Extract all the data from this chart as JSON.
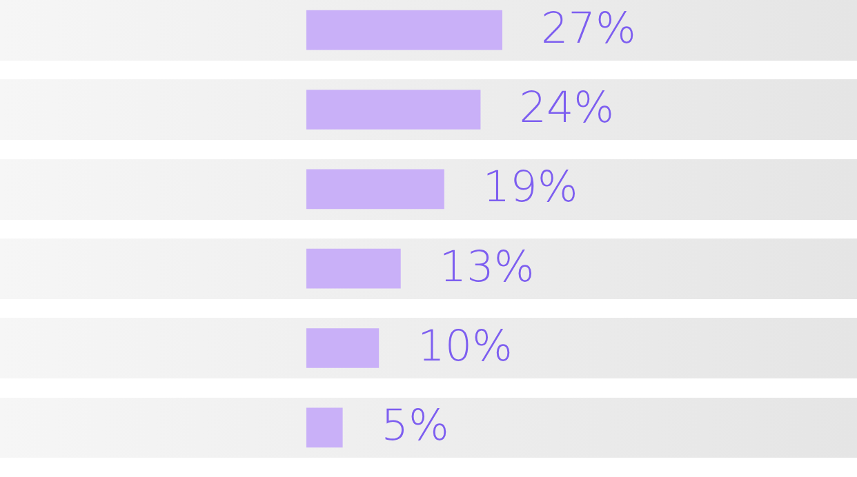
{
  "chart_data": {
    "type": "bar",
    "orientation": "horizontal",
    "categories": [
      null,
      null,
      null,
      null,
      null,
      null
    ],
    "values": [
      27,
      24,
      19,
      13,
      10,
      5
    ],
    "value_labels": [
      "27%",
      "24%",
      "19%",
      "13%",
      "10%",
      "5%"
    ],
    "color": "#c9b0f8"
  }
}
